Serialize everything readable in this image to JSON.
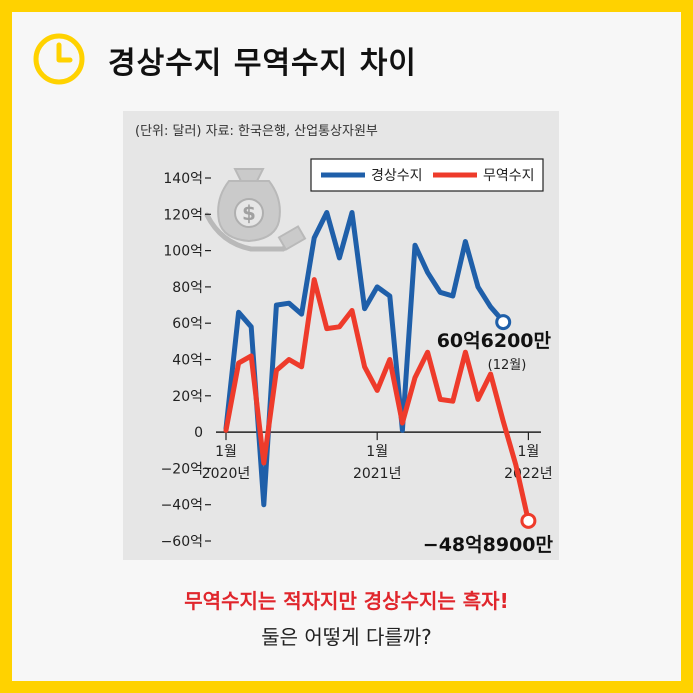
{
  "header": {
    "title": "경상수지 무역수지 차이",
    "icon": "clock-icon",
    "accent_color": "#ffd200"
  },
  "chart_data": {
    "type": "line",
    "note": "(단위: 달러) 자료: 한국은행, 산업통상자원부",
    "ylim": [
      -60,
      140
    ],
    "yticks": [
      140,
      120,
      100,
      80,
      60,
      40,
      20,
      0,
      -20,
      -40,
      -60
    ],
    "ytick_labels": [
      "140억",
      "120억",
      "100억",
      "80억",
      "60억",
      "40억",
      "20억",
      "0",
      "−20억",
      "−40억",
      "−60억"
    ],
    "xticks": [
      {
        "month_index": 0,
        "line1": "1월",
        "line2": "2020년"
      },
      {
        "month_index": 12,
        "line1": "1월",
        "line2": "2021년"
      },
      {
        "month_index": 24,
        "line1": "1월",
        "line2": "2022년"
      }
    ],
    "series": [
      {
        "name": "경상수지",
        "color": "#1f5fa9",
        "start_month_index": 0,
        "values": [
          2,
          66,
          58,
          -40,
          70,
          71,
          65,
          107,
          121,
          96,
          121,
          68,
          80,
          75,
          1,
          103,
          88,
          77,
          75,
          105,
          80,
          69,
          61
        ]
      },
      {
        "name": "무역수지",
        "color": "#ee3b2b",
        "start_month_index": 0,
        "values": [
          1,
          38,
          42,
          -17,
          34,
          40,
          36,
          84,
          57,
          58,
          67,
          36,
          23,
          40,
          5,
          30,
          44,
          18,
          17,
          44,
          18,
          32,
          6,
          -18,
          -49
        ]
      }
    ],
    "annotations": [
      {
        "label": "60억6200만",
        "sublabel": "(12월)",
        "series": "경상수지",
        "month_index": 22,
        "value": 60.62
      },
      {
        "label": "−48억8900만",
        "series": "무역수지",
        "month_index": 24,
        "value": -48.89
      }
    ],
    "legend_position": "top-right"
  },
  "captions": {
    "line1": "무역수지는 적자지만 경상수지는 흑자!",
    "line2": "둘은 어떻게 다를까?"
  }
}
